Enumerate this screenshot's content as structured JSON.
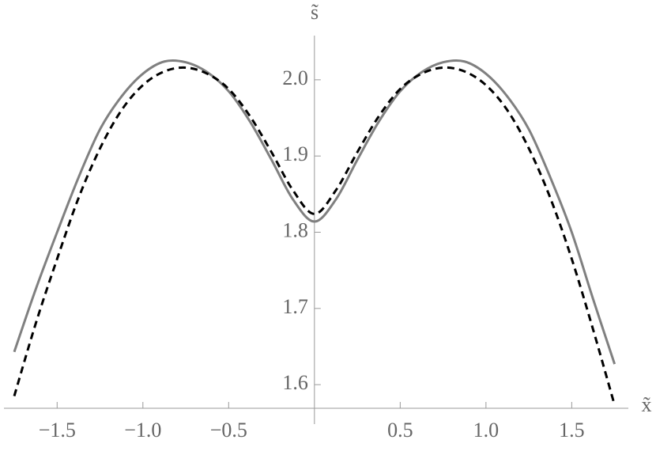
{
  "chart_data": {
    "type": "line",
    "xlabel": "x̃",
    "ylabel": "s̃",
    "x": [
      -1.75,
      -1.625,
      -1.5,
      -1.375,
      -1.25,
      -1.125,
      -1.0,
      -0.875,
      -0.75,
      -0.625,
      -0.5,
      -0.375,
      -0.25,
      -0.125,
      0,
      0.125,
      0.25,
      0.375,
      0.5,
      0.625,
      0.75,
      0.875,
      1.0,
      1.125,
      1.25,
      1.375,
      1.5,
      1.625,
      1.75
    ],
    "series": [
      {
        "color": "#808080",
        "dash": false,
        "values": [
          1.643,
          1.725,
          1.8,
          1.872,
          1.935,
          1.978,
          2.008,
          2.024,
          2.023,
          2.01,
          1.985,
          1.945,
          1.895,
          1.843,
          1.814,
          1.843,
          1.895,
          1.945,
          1.985,
          2.01,
          2.023,
          2.024,
          2.008,
          1.978,
          1.935,
          1.872,
          1.8,
          1.712,
          1.627
        ]
      },
      {
        "color": "#000000",
        "dash": true,
        "values": [
          1.585,
          1.68,
          1.765,
          1.845,
          1.91,
          1.96,
          1.993,
          2.011,
          2.016,
          2.008,
          1.988,
          1.952,
          1.905,
          1.855,
          1.824,
          1.855,
          1.905,
          1.952,
          1.988,
          2.008,
          2.016,
          2.011,
          1.993,
          1.96,
          1.91,
          1.845,
          1.765,
          1.672,
          1.573
        ]
      }
    ],
    "xlim": [
      -1.81,
      1.83
    ],
    "ylim": [
      1.569,
      2.058
    ],
    "xticks": [
      {
        "value": -1.5,
        "label": "−1.5"
      },
      {
        "value": -1.0,
        "label": "−1.0"
      },
      {
        "value": -0.5,
        "label": "−0.5"
      },
      0.5,
      {
        "value": 1.0,
        "label": "1.0"
      },
      1.5
    ],
    "yticks": [
      1.6,
      1.7,
      1.8,
      1.9,
      {
        "value": 2.0,
        "label": "2.0"
      }
    ]
  }
}
